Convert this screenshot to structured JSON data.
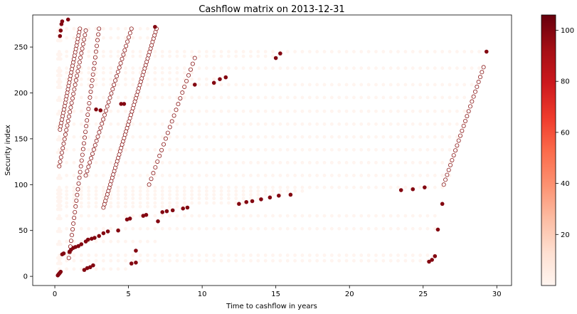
{
  "chart_data": {
    "type": "scatter",
    "title": "Cashflow matrix on 2013-12-31",
    "xlabel": "Time to cashflow in years",
    "ylabel": "Security index",
    "xlim": [
      -1.5,
      31
    ],
    "ylim": [
      -10,
      285
    ],
    "xticks": [
      0,
      5,
      10,
      15,
      20,
      25,
      30
    ],
    "yticks": [
      0,
      50,
      100,
      150,
      200,
      250
    ],
    "grid": false,
    "colormap": "Reds",
    "colorbar": {
      "min": 0,
      "max": 106,
      "ticks": [
        20,
        40,
        60,
        80,
        100
      ]
    },
    "colors": {
      "low": "#fff5f0",
      "mid": "#fb6a4a",
      "high": "#67000d"
    },
    "background_pattern": {
      "description_value": 0.5,
      "rows": [
        {
          "y": 270,
          "x": [
            0.3,
            6.5
          ]
        },
        {
          "y": 260,
          "x": [
            0.3,
            6.5
          ]
        },
        {
          "y": 245,
          "x": [
            0.3,
            29.3
          ]
        },
        {
          "y": 240,
          "x": [
            0.3,
            15.0
          ]
        },
        {
          "y": 227,
          "x": [
            0.3,
            29.0
          ]
        },
        {
          "y": 222,
          "x": [
            0.3,
            9.5
          ]
        },
        {
          "y": 215,
          "x": [
            0.3,
            11.5
          ]
        },
        {
          "y": 209,
          "x": [
            0.3,
            28.7
          ]
        },
        {
          "y": 195,
          "x": [
            0.3,
            28.4
          ]
        },
        {
          "y": 180,
          "x": [
            0.3,
            28.0
          ]
        },
        {
          "y": 166,
          "x": [
            0.3,
            27.8
          ]
        },
        {
          "y": 152,
          "x": [
            0.3,
            27.5
          ]
        },
        {
          "y": 138,
          "x": [
            0.3,
            27.3
          ]
        },
        {
          "y": 124,
          "x": [
            0.3,
            27.0
          ]
        },
        {
          "y": 110,
          "x": [
            0.3,
            26.8
          ]
        },
        {
          "y": 97,
          "x": [
            0.3,
            26.5
          ]
        },
        {
          "y": 93,
          "x": [
            0.3,
            17.0
          ]
        },
        {
          "y": 89,
          "x": [
            0.3,
            15.5
          ]
        },
        {
          "y": 85,
          "x": [
            0.3,
            14.0
          ]
        },
        {
          "y": 80,
          "x": [
            0.3,
            13.0
          ]
        },
        {
          "y": 76,
          "x": [
            0.3,
            9.0
          ]
        },
        {
          "y": 66,
          "x": [
            0.3,
            26.2
          ]
        },
        {
          "y": 52,
          "x": [
            0.3,
            26.0
          ]
        },
        {
          "y": 38,
          "x": [
            0.3,
            7.0
          ]
        },
        {
          "y": 23,
          "x": [
            0.3,
            26.0
          ]
        },
        {
          "y": 17,
          "x": [
            0.3,
            25.5
          ]
        },
        {
          "y": 8,
          "x": [
            0.3,
            5.0
          ]
        }
      ]
    },
    "series": [
      {
        "values": [
          {
            "x": 0.2,
            "y": 1,
            "c": 100
          },
          {
            "x": 0.25,
            "y": 2,
            "c": 100
          },
          {
            "x": 0.3,
            "y": 3,
            "c": 100
          },
          {
            "x": 0.35,
            "y": 4,
            "c": 100
          },
          {
            "x": 0.4,
            "y": 5,
            "c": 100
          },
          {
            "x": 0.5,
            "y": 24,
            "c": 100
          },
          {
            "x": 0.6,
            "y": 25,
            "c": 100
          },
          {
            "x": 1.0,
            "y": 27,
            "c": 100
          },
          {
            "x": 1.1,
            "y": 29,
            "c": 100
          },
          {
            "x": 1.25,
            "y": 31,
            "c": 100
          },
          {
            "x": 1.4,
            "y": 32,
            "c": 100
          },
          {
            "x": 1.6,
            "y": 33,
            "c": 100
          },
          {
            "x": 1.8,
            "y": 35,
            "c": 100
          },
          {
            "x": 2.1,
            "y": 38,
            "c": 100
          },
          {
            "x": 2.25,
            "y": 40,
            "c": 100
          },
          {
            "x": 2.5,
            "y": 41,
            "c": 100
          },
          {
            "x": 2.7,
            "y": 42,
            "c": 100
          },
          {
            "x": 3.0,
            "y": 44,
            "c": 100
          },
          {
            "x": 3.3,
            "y": 47,
            "c": 100
          },
          {
            "x": 3.6,
            "y": 49,
            "c": 100
          },
          {
            "x": 4.3,
            "y": 50,
            "c": 100
          },
          {
            "x": 5.5,
            "y": 28,
            "c": 100
          },
          {
            "x": 4.9,
            "y": 62,
            "c": 100
          },
          {
            "x": 5.1,
            "y": 63,
            "c": 100
          },
          {
            "x": 6.0,
            "y": 66,
            "c": 100
          },
          {
            "x": 6.2,
            "y": 67,
            "c": 100
          },
          {
            "x": 7.0,
            "y": 60,
            "c": 100
          },
          {
            "x": 7.3,
            "y": 70,
            "c": 100
          },
          {
            "x": 7.6,
            "y": 71,
            "c": 100
          },
          {
            "x": 8.0,
            "y": 72,
            "c": 100
          },
          {
            "x": 8.7,
            "y": 74,
            "c": 100
          },
          {
            "x": 9.0,
            "y": 75,
            "c": 100
          },
          {
            "x": 5.2,
            "y": 14,
            "c": 100
          },
          {
            "x": 5.5,
            "y": 15,
            "c": 100
          },
          {
            "x": 2.0,
            "y": 7,
            "c": 100
          },
          {
            "x": 2.2,
            "y": 9,
            "c": 100
          },
          {
            "x": 2.4,
            "y": 10,
            "c": 100
          },
          {
            "x": 2.6,
            "y": 12,
            "c": 100
          },
          {
            "x": 12.5,
            "y": 79,
            "c": 100
          },
          {
            "x": 13.0,
            "y": 81,
            "c": 100
          },
          {
            "x": 13.4,
            "y": 82,
            "c": 100
          },
          {
            "x": 14.0,
            "y": 84,
            "c": 100
          },
          {
            "x": 14.6,
            "y": 86,
            "c": 100
          },
          {
            "x": 15.2,
            "y": 88,
            "c": 100
          },
          {
            "x": 16.0,
            "y": 89,
            "c": 100
          },
          {
            "x": 23.5,
            "y": 94,
            "c": 100
          },
          {
            "x": 24.3,
            "y": 95,
            "c": 100
          },
          {
            "x": 25.1,
            "y": 97,
            "c": 100
          },
          {
            "x": 26.3,
            "y": 79,
            "c": 100
          },
          {
            "x": 26.0,
            "y": 51,
            "c": 100
          },
          {
            "x": 25.4,
            "y": 16,
            "c": 100
          },
          {
            "x": 25.6,
            "y": 18,
            "c": 100
          },
          {
            "x": 25.8,
            "y": 22,
            "c": 100
          },
          {
            "x": 29.3,
            "y": 245,
            "c": 100
          },
          {
            "x": 15.0,
            "y": 238,
            "c": 100
          },
          {
            "x": 15.3,
            "y": 243,
            "c": 100
          },
          {
            "x": 9.5,
            "y": 209,
            "c": 100
          },
          {
            "x": 10.8,
            "y": 211,
            "c": 100
          },
          {
            "x": 11.2,
            "y": 215,
            "c": 100
          },
          {
            "x": 11.6,
            "y": 217,
            "c": 100
          },
          {
            "x": 0.35,
            "y": 262,
            "c": 100
          },
          {
            "x": 0.4,
            "y": 268,
            "c": 100
          },
          {
            "x": 0.45,
            "y": 275,
            "c": 100
          },
          {
            "x": 0.5,
            "y": 278,
            "c": 100
          },
          {
            "x": 0.9,
            "y": 280,
            "c": 100
          },
          {
            "x": 6.8,
            "y": 272,
            "c": 100
          },
          {
            "x": 2.8,
            "y": 182,
            "c": 100
          },
          {
            "x": 3.1,
            "y": 181,
            "c": 100
          },
          {
            "x": 4.5,
            "y": 188,
            "c": 100
          },
          {
            "x": 4.7,
            "y": 188,
            "c": 100
          }
        ]
      }
    ],
    "diagonal_bands": [
      {
        "from": {
          "x": 3.3,
          "y": 75
        },
        "to": {
          "x": 6.9,
          "y": 270
        },
        "points": 54
      },
      {
        "from": {
          "x": 0.95,
          "y": 20
        },
        "to": {
          "x": 3.0,
          "y": 270
        },
        "points": 40
      },
      {
        "from": {
          "x": 0.35,
          "y": 160
        },
        "to": {
          "x": 1.7,
          "y": 270
        },
        "points": 30
      },
      {
        "from": {
          "x": 2.1,
          "y": 110
        },
        "to": {
          "x": 5.2,
          "y": 270
        },
        "points": 34
      },
      {
        "from": {
          "x": 0.3,
          "y": 120
        },
        "to": {
          "x": 2.1,
          "y": 268
        },
        "points": 30
      },
      {
        "from": {
          "x": 6.4,
          "y": 100
        },
        "to": {
          "x": 9.5,
          "y": 238
        },
        "points": 22
      },
      {
        "from": {
          "x": 26.4,
          "y": 100
        },
        "to": {
          "x": 29.1,
          "y": 228
        },
        "points": 24
      }
    ]
  }
}
